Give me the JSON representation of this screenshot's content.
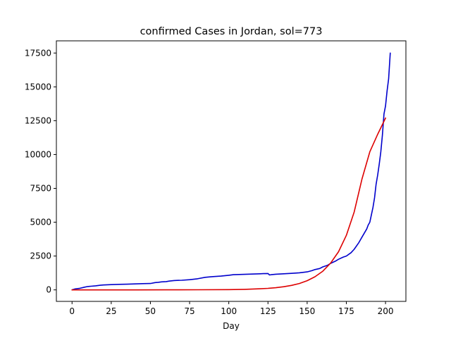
{
  "chart_data": {
    "type": "line",
    "title": "confirmed Cases in Jordan, sol=773",
    "xlabel": "Day",
    "ylabel": "",
    "xlim": [
      -10,
      213
    ],
    "ylim": [
      -850,
      18400
    ],
    "xticks": [
      0,
      25,
      50,
      75,
      100,
      125,
      150,
      175,
      200
    ],
    "yticks": [
      0,
      2500,
      5000,
      7500,
      10000,
      12500,
      15000,
      17500
    ],
    "grid": false,
    "legend": "none",
    "series": [
      {
        "color": "#0000cc",
        "x": [
          0,
          2,
          5,
          8,
          10,
          12,
          15,
          18,
          20,
          25,
          30,
          35,
          40,
          45,
          50,
          53,
          55,
          57,
          60,
          62,
          65,
          67,
          70,
          75,
          80,
          85,
          88,
          90,
          95,
          100,
          103,
          105,
          110,
          115,
          120,
          122,
          125,
          126,
          127,
          130,
          135,
          140,
          145,
          150,
          153,
          155,
          158,
          160,
          163,
          165,
          168,
          170,
          173,
          175,
          178,
          180,
          183,
          185,
          188,
          189,
          190,
          192,
          193,
          194,
          195,
          196,
          197,
          198,
          199,
          200,
          201,
          202,
          203
        ],
        "y": [
          0,
          70,
          120,
          200,
          250,
          270,
          300,
          340,
          360,
          390,
          410,
          420,
          440,
          460,
          470,
          540,
          560,
          590,
          610,
          650,
          690,
          700,
          710,
          750,
          820,
          930,
          960,
          980,
          1020,
          1080,
          1120,
          1130,
          1150,
          1170,
          1190,
          1200,
          1210,
          1100,
          1120,
          1160,
          1190,
          1220,
          1260,
          1330,
          1420,
          1500,
          1580,
          1700,
          1820,
          1960,
          2120,
          2260,
          2420,
          2500,
          2750,
          3000,
          3500,
          3900,
          4500,
          4800,
          5000,
          6100,
          6800,
          7800,
          8500,
          9300,
          10200,
          11400,
          13000,
          13600,
          14700,
          15600,
          17500
        ]
      },
      {
        "color": "#dd0000",
        "x": [
          0,
          20,
          40,
          60,
          80,
          100,
          110,
          120,
          125,
          130,
          135,
          140,
          145,
          150,
          155,
          160,
          165,
          170,
          175,
          180,
          185,
          190,
          195,
          200
        ],
        "y": [
          0,
          0,
          0,
          5,
          10,
          20,
          40,
          80,
          110,
          160,
          230,
          330,
          470,
          680,
          970,
          1380,
          1980,
          2820,
          4030,
          5750,
          8200,
          10200,
          11500,
          12700
        ]
      }
    ]
  }
}
